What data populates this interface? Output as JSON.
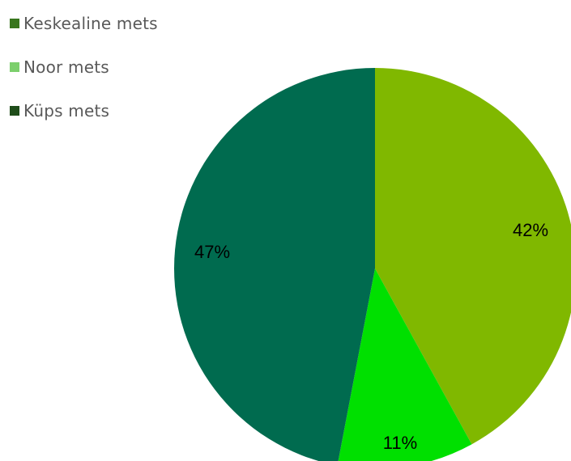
{
  "chart_data": {
    "type": "pie",
    "legend": {
      "placement": "top-left",
      "entries": [
        {
          "label": "Keskealine mets",
          "color": "#38761d"
        },
        {
          "label": "Noor mets",
          "color": "#7ccf6c"
        },
        {
          "label": "Küps mets",
          "color": "#1f4d1a"
        }
      ]
    },
    "slices": [
      {
        "value": 42,
        "label": "42%",
        "color": "#80b800"
      },
      {
        "value": 11,
        "label": "11%",
        "color": "#00e000"
      },
      {
        "value": 47,
        "label": "47%",
        "color": "#006b4f"
      }
    ],
    "start": "12 o'clock",
    "direction": "clockwise"
  }
}
